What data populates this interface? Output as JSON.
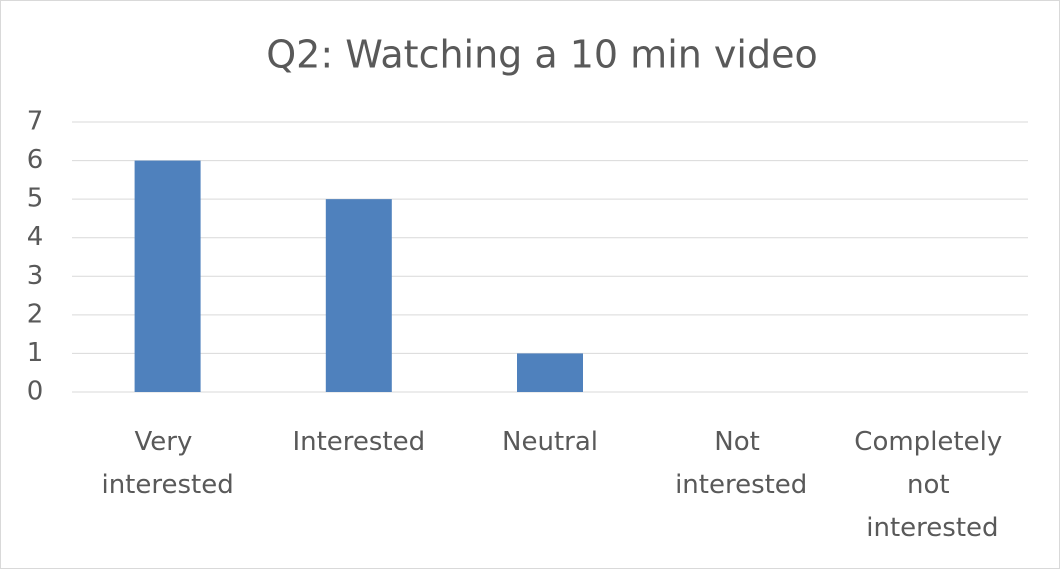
{
  "chart_data": {
    "type": "bar",
    "title": "Q2: Watching a 10 min video",
    "categories": [
      "Very interested",
      "Interested",
      "Neutral",
      "Not interested",
      "Completely not interested"
    ],
    "values": [
      6,
      5,
      1,
      0,
      0
    ],
    "color": "#4f81bd",
    "ylim": [
      0,
      7
    ],
    "yticks": [
      0,
      1,
      2,
      3,
      4,
      5,
      6,
      7
    ],
    "grid": true
  }
}
